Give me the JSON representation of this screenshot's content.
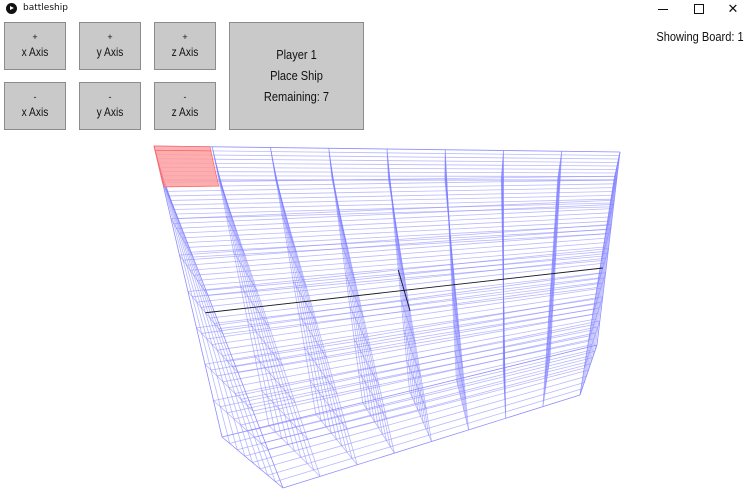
{
  "window": {
    "title": "battleship",
    "icons": [
      "app-icon",
      "minimize-icon",
      "maximize-icon",
      "close-icon"
    ]
  },
  "controls": {
    "plus_x": {
      "sign": "+",
      "label": "x Axis"
    },
    "plus_y": {
      "sign": "+",
      "label": "y Axis"
    },
    "plus_z": {
      "sign": "+",
      "label": "z Axis"
    },
    "minus_x": {
      "sign": "-",
      "label": "x Axis"
    },
    "minus_y": {
      "sign": "-",
      "label": "y Axis"
    },
    "minus_z": {
      "sign": "-",
      "label": "z Axis"
    }
  },
  "status": {
    "player": "Player 1",
    "action": "Place Ship",
    "remaining": "Remaining: 7"
  },
  "board_indicator": "Showing Board: 1",
  "grid": {
    "cells": 8,
    "line_color": "#8080ff",
    "axis_color": "#000000",
    "ship_color": "#ff9a9a"
  }
}
